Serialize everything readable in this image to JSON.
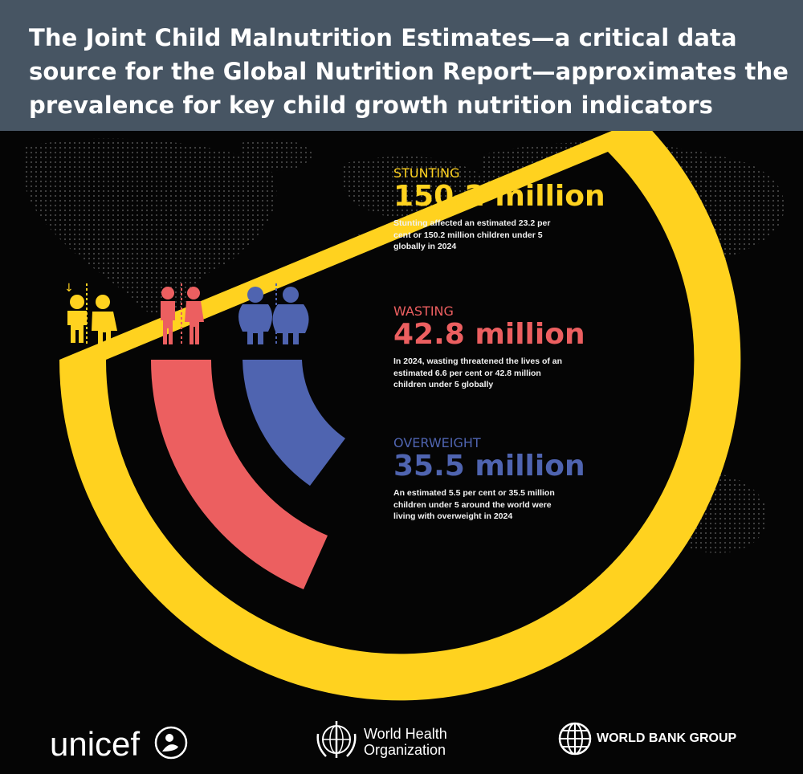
{
  "header": {
    "title": "The Joint Child Malnutrition Estimates—a critical data source for the Global Nutrition Report—approximates the prevalence for key child growth nutrition indicators"
  },
  "colors": {
    "header_bg": "#475563",
    "stunting": "#FFD21F",
    "wasting": "#EC5F60",
    "overweight": "#4F64B0",
    "background": "#050505"
  },
  "stats": {
    "stunting": {
      "label": "STUNTING",
      "value": "150.2 million",
      "description": "Stunting affected an estimated 23.2 per cent or 150.2 million children under 5 globally in 2024"
    },
    "wasting": {
      "label": "WASTING",
      "value": "42.8 million",
      "description": "In 2024, wasting threatened the lives of an estimated 6.6 per cent or 42.8 million children under 5 globally"
    },
    "overweight": {
      "label": "OVERWEIGHT",
      "value": "35.5 million",
      "description": "An estimated 5.5 per cent or 35.5 million children under 5 around the world were living with overweight in 2024"
    }
  },
  "icons": {
    "stunting": "short-children-icon",
    "wasting": "thin-children-icon",
    "overweight": "overweight-children-icon"
  },
  "logos": {
    "unicef": "unicef",
    "who": "World Health Organization",
    "who_line1": "World Health",
    "who_line2": "Organization",
    "world_bank": "WORLD BANK GROUP"
  }
}
